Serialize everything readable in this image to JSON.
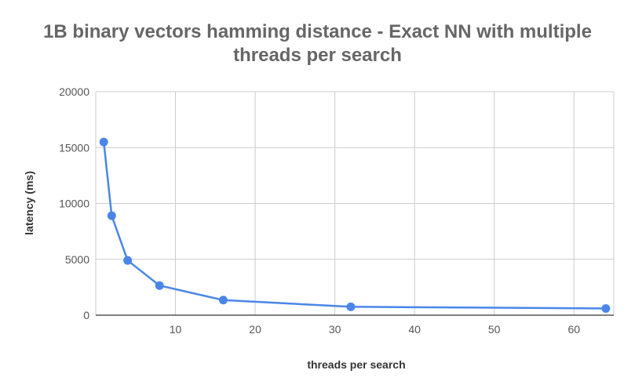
{
  "chart_data": {
    "type": "line",
    "title_line1": "1B binary vectors hamming distance - Exact NN with multiple",
    "title_line2": "threads per search",
    "xlabel": "threads per search",
    "ylabel": "latency (ms)",
    "xlim": [
      0,
      65
    ],
    "ylim": [
      0,
      20000
    ],
    "x_ticks": [
      10,
      20,
      30,
      40,
      50,
      60
    ],
    "y_ticks": [
      0,
      5000,
      10000,
      15000,
      20000
    ],
    "grid": true,
    "legend": "none",
    "series": [
      {
        "color": "#4a86e8",
        "x": [
          1,
          2,
          4,
          8,
          16,
          32,
          64
        ],
        "y": [
          15500,
          8900,
          4900,
          2650,
          1350,
          750,
          600
        ]
      }
    ]
  }
}
